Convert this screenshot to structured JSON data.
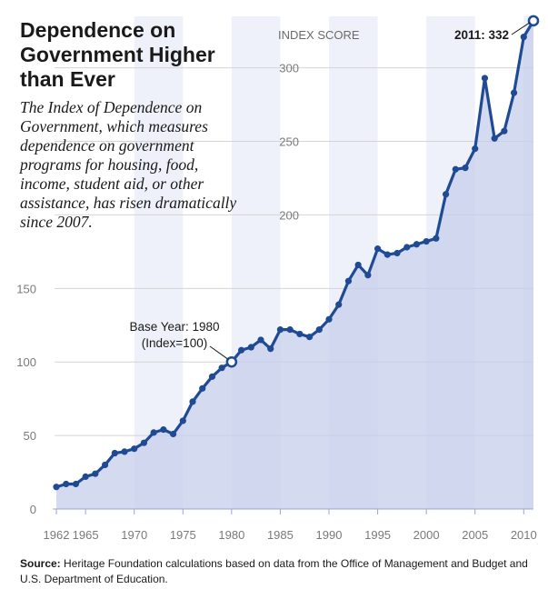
{
  "title": "Dependence on Government Higher than Ever",
  "subtitle": "The Index of Dependence on Government, which measures dependence on government programs for housing, food, income, student aid, or other assistance, has risen dramatically since 2007.",
  "source": {
    "label": "Source:",
    "text": "Heritage Foundation calculations based on data from the Office of Management and Budget and U.S. Department of Education."
  },
  "chart_data": {
    "type": "area",
    "ylabel": "INDEX SCORE",
    "xlim": [
      1962,
      2011
    ],
    "ylim": [
      0,
      335
    ],
    "y_ticks": [
      "0",
      "50",
      "100",
      "150",
      "200",
      "250",
      "300"
    ],
    "x_ticks": [
      "1962",
      "1965",
      "1970",
      "1975",
      "1980",
      "1985",
      "1990",
      "1995",
      "2000",
      "2005",
      "2010"
    ],
    "series": [
      {
        "x": [
          1962,
          1963,
          1964,
          1965,
          1966,
          1967,
          1968,
          1969,
          1970,
          1971,
          1972,
          1973,
          1974,
          1975,
          1976,
          1977,
          1978,
          1979,
          1980,
          1981,
          1982,
          1983,
          1984,
          1985,
          1986,
          1987,
          1988,
          1989,
          1990,
          1991,
          1992,
          1993,
          1994,
          1995,
          1996,
          1997,
          1998,
          1999,
          2000,
          2001,
          2002,
          2003,
          2004,
          2005,
          2006,
          2007,
          2008,
          2009,
          2010,
          2011
        ],
        "values": [
          15,
          17,
          17,
          22,
          24,
          30,
          38,
          39,
          41,
          45,
          52,
          54,
          51,
          60,
          73,
          82,
          90,
          96,
          100,
          108,
          110,
          115,
          109,
          122,
          122,
          119,
          117,
          122,
          129,
          139,
          155,
          166,
          159,
          177,
          173,
          174,
          178,
          180,
          182,
          184,
          214,
          231,
          232,
          245,
          293,
          252,
          257,
          283,
          321,
          332
        ]
      }
    ],
    "colors": {
      "line": "#1f4a94",
      "fill": "#c5cde9",
      "band": "#b9c3e3",
      "grid": "#d4d4d4"
    },
    "annotations": [
      {
        "text_line1": "Base Year: 1980",
        "text_line2": "(Index=100)",
        "x": 1980,
        "y": 100
      },
      {
        "text": "2011: 332",
        "x": 2011,
        "y": 332
      }
    ]
  }
}
